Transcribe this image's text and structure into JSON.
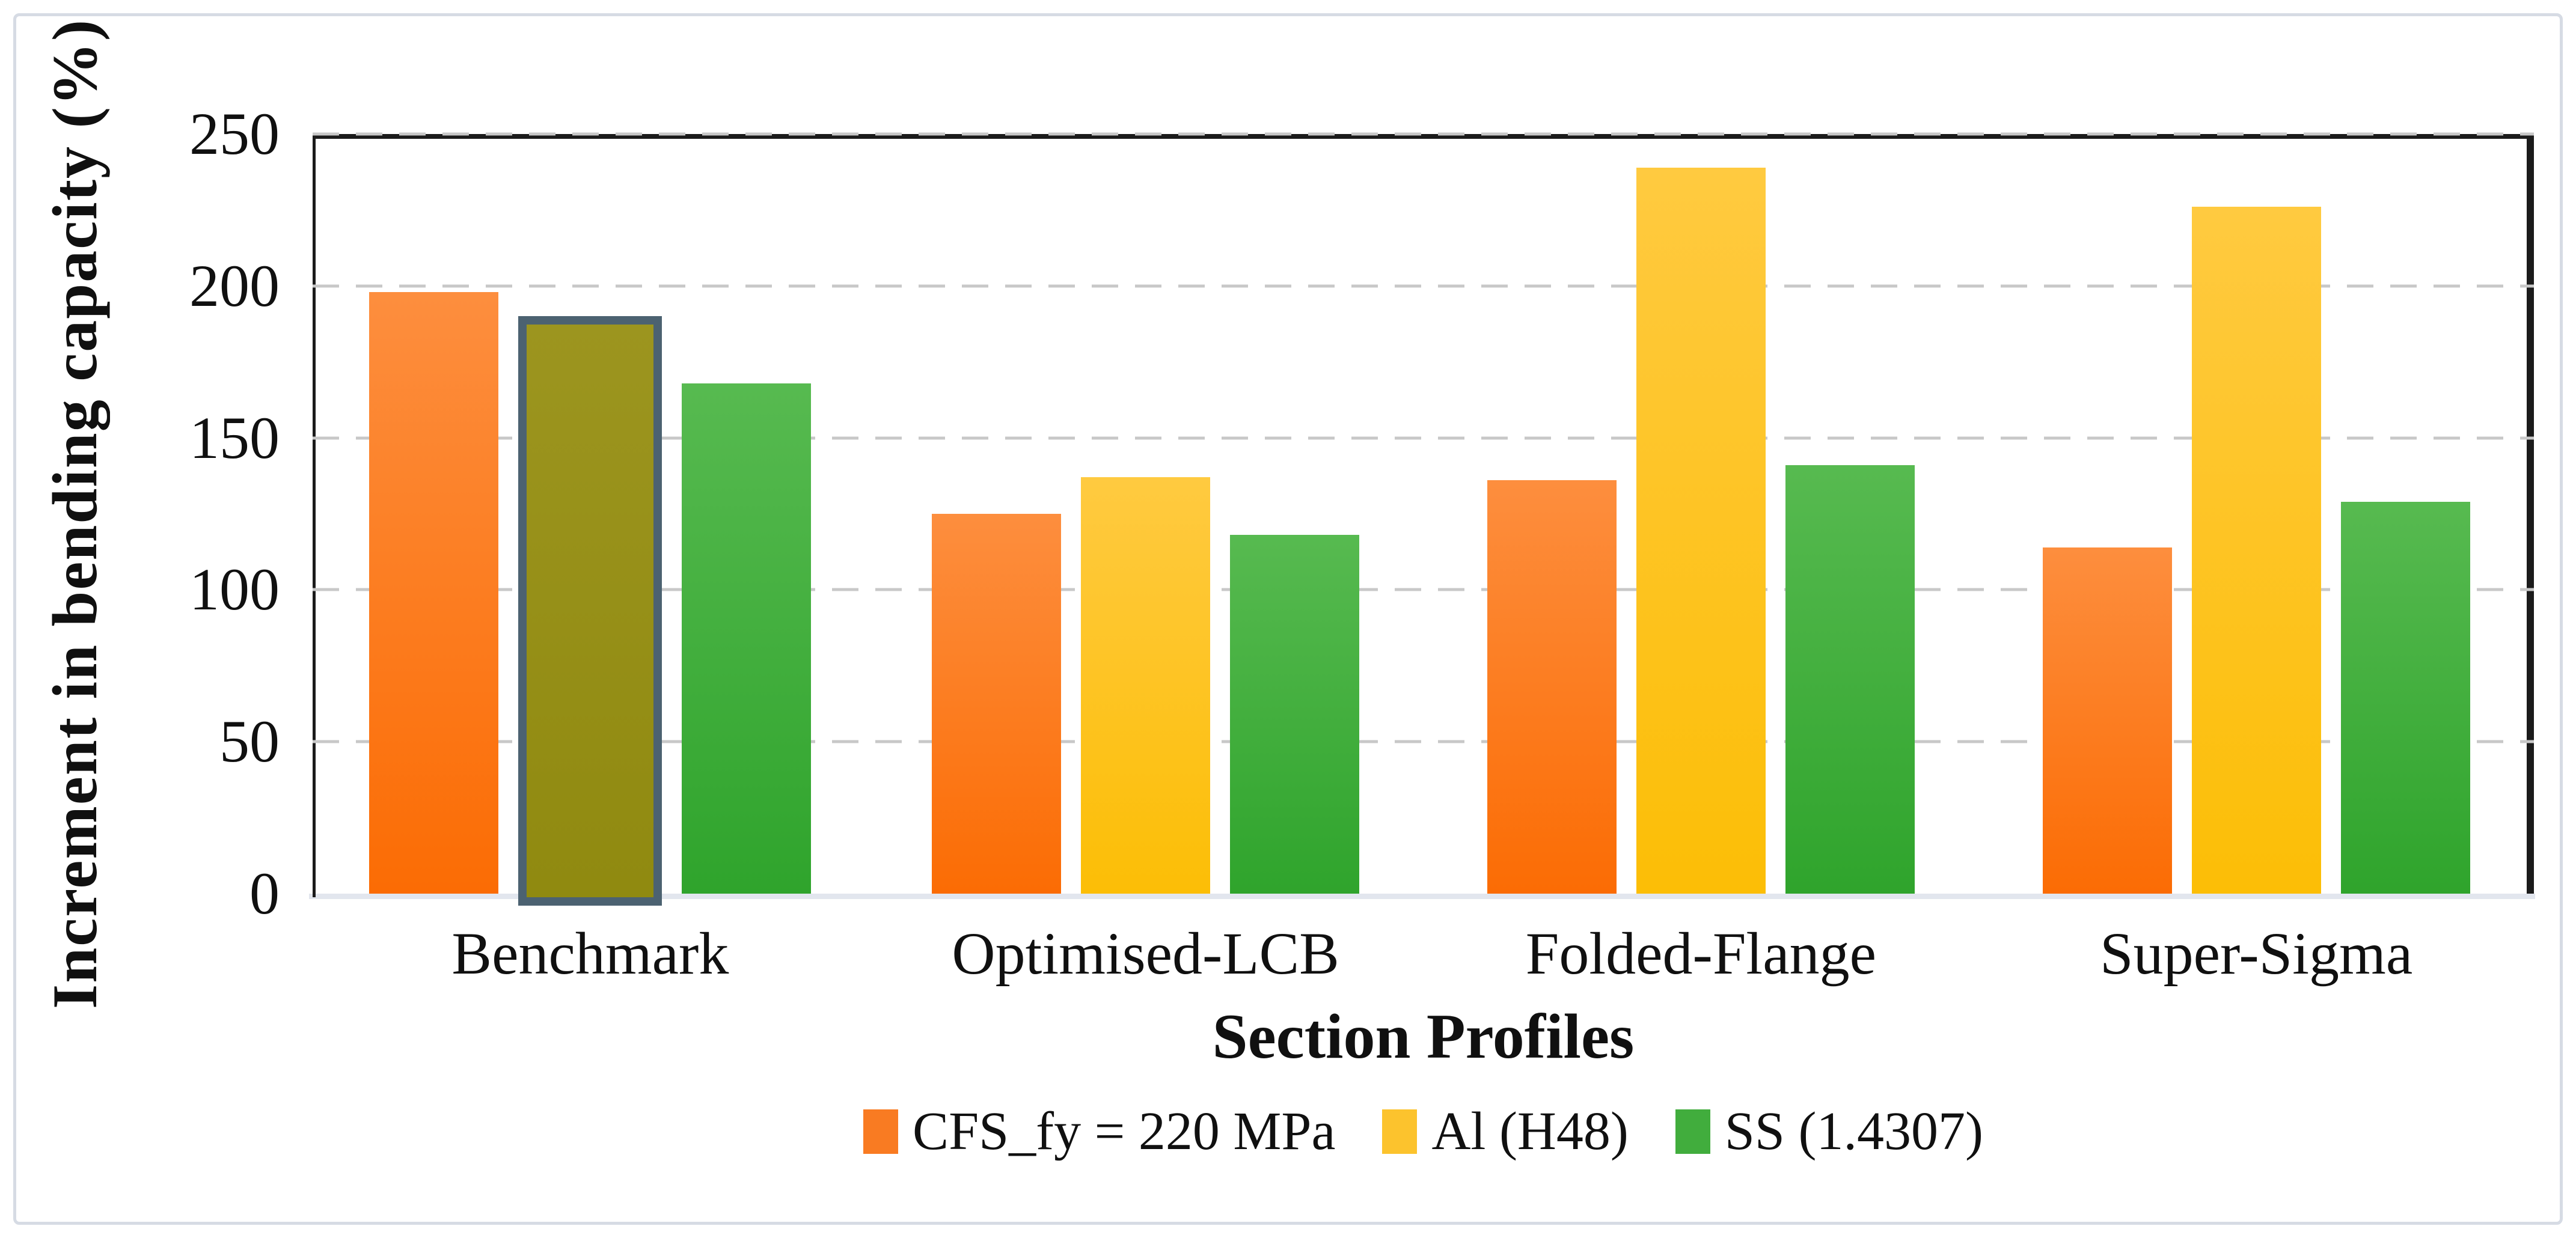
{
  "chart_data": {
    "type": "bar",
    "title": "",
    "ylabel": "Increment in bending capacity (%)",
    "xlabel": "Section Profiles",
    "ylim": [
      0,
      250
    ],
    "yticks": [
      250,
      200,
      150,
      100,
      50,
      0
    ],
    "grid": "horizontal-dashed",
    "legend_position": "bottom",
    "categories": [
      "Benchmark",
      "Optimised-LCB",
      "Folded-Flange",
      "Super-Sigma"
    ],
    "series": [
      {
        "name": "CFS_fy = 220 MPa",
        "legend_color": "#F97B22",
        "color_top": "#FD8E3E",
        "color_bottom": "#FB6C04",
        "values": [
          198,
          125,
          136,
          114
        ]
      },
      {
        "name": "Al (H48)",
        "legend_color": "#FCC32D",
        "color_top": "#FFCA40",
        "color_bottom": "#FCBE06",
        "values": [
          190,
          137,
          239,
          226
        ]
      },
      {
        "name": "SS (1.4307)",
        "legend_color": "#41AD3D",
        "color_top": "#57BA50",
        "color_bottom": "#2FA42C",
        "values": [
          168,
          118,
          141,
          129
        ]
      }
    ],
    "highlight": {
      "category": "Benchmark",
      "series": "Al (H48)",
      "category_index": 0,
      "series_index": 1,
      "fill_top": "#9C951F",
      "fill_bottom": "#908A10",
      "border_color": "#4C6271"
    }
  },
  "colors": {
    "frame": "#1b1b1b",
    "baseline": "#e2e6ee",
    "gridline": "#c8c8c8",
    "figure_border": "#d6dbe4",
    "text": "#101010"
  }
}
